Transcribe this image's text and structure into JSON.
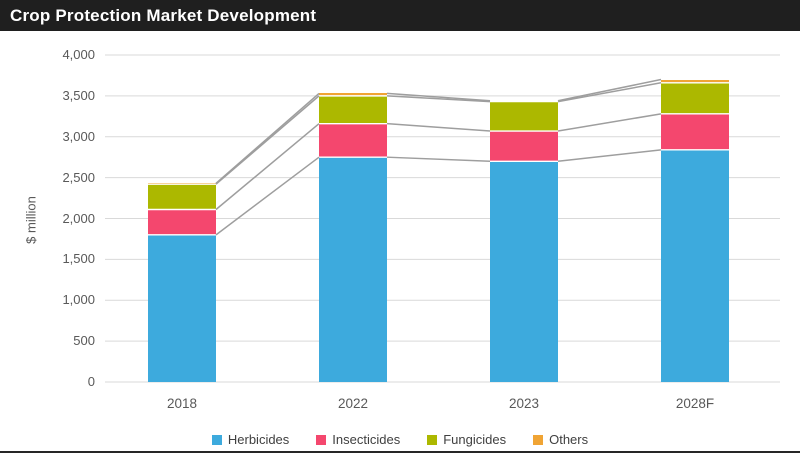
{
  "title": "Crop Protection Market Development",
  "chart_data": {
    "type": "bar",
    "stacked": true,
    "title": "Crop Protection Market Development",
    "ylabel": "$ million",
    "xlabel": "",
    "categories": [
      "2018",
      "2022",
      "2023",
      "2028F"
    ],
    "series": [
      {
        "name": "Herbicides",
        "color": "#3DAADD",
        "values": [
          1800,
          2750,
          2700,
          2840
        ]
      },
      {
        "name": "Insecticides",
        "color": "#F4476E",
        "values": [
          310,
          410,
          370,
          440
        ]
      },
      {
        "name": "Fungicides",
        "color": "#ACB800",
        "values": [
          310,
          340,
          360,
          380
        ]
      },
      {
        "name": "Others",
        "color": "#F0A434",
        "values": [
          10,
          30,
          10,
          40
        ]
      }
    ],
    "totals": [
      2430,
      3530,
      3440,
      3700
    ],
    "ylim": [
      0,
      4000
    ],
    "ytick_step": 500,
    "ytick_labels": [
      "0",
      "500",
      "1,000",
      "1,500",
      "2,000",
      "2,500",
      "3,000",
      "3,500",
      "4,000"
    ],
    "grid": true,
    "legend_position": "bottom",
    "series_lines": true
  },
  "colors": {
    "title_bar_bg": "#1F1F1F",
    "title_text": "#FFFFFF",
    "gridline": "#D9D9D9",
    "axis_text": "#595959",
    "legend_text": "#404040",
    "series_line": "#9E9E9E",
    "segment_separator": "#FFFFFF",
    "bottom_border": "#262626"
  }
}
